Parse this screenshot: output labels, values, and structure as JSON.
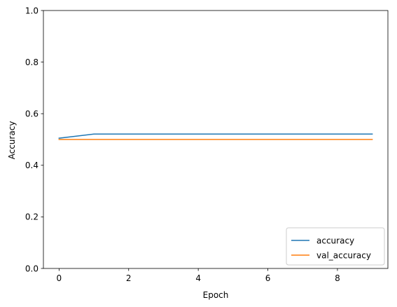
{
  "chart_data": {
    "type": "line",
    "title": "",
    "xlabel": "Epoch",
    "ylabel": "Accuracy",
    "xlim": [
      -0.45,
      9.45
    ],
    "ylim": [
      0.0,
      1.0
    ],
    "xticks": [
      0,
      2,
      4,
      6,
      8
    ],
    "yticks": [
      0.0,
      0.2,
      0.4,
      0.6,
      0.8,
      1.0
    ],
    "xtick_labels": [
      "0",
      "2",
      "4",
      "6",
      "8"
    ],
    "ytick_labels": [
      "0.0",
      "0.2",
      "0.4",
      "0.6",
      "0.8",
      "1.0"
    ],
    "grid": false,
    "legend_position": "lower-right",
    "x": [
      0,
      1,
      2,
      3,
      4,
      5,
      6,
      7,
      8,
      9
    ],
    "series": [
      {
        "name": "accuracy",
        "color": "#1f77b4",
        "values": [
          0.505,
          0.521,
          0.521,
          0.521,
          0.521,
          0.521,
          0.521,
          0.521,
          0.521,
          0.521
        ]
      },
      {
        "name": "val_accuracy",
        "color": "#ff7f0e",
        "values": [
          0.5,
          0.5,
          0.5,
          0.5,
          0.5,
          0.5,
          0.5,
          0.5,
          0.5,
          0.5
        ]
      }
    ]
  }
}
